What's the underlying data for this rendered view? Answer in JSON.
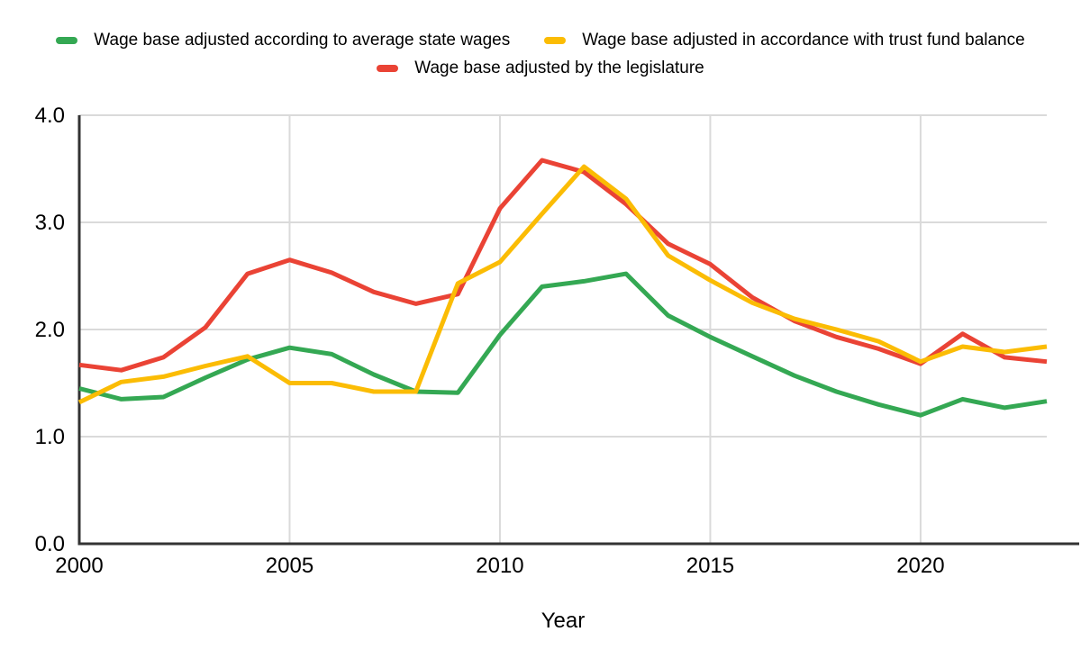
{
  "legend": {
    "items": [
      {
        "label": "Wage base adjusted according to average state wages",
        "color": "#34a853"
      },
      {
        "label": "Wage base adjusted in accordance with trust fund balance",
        "color": "#fbbc04"
      },
      {
        "label": "Wage base adjusted by the legislature",
        "color": "#ea4335"
      }
    ]
  },
  "chart_data": {
    "type": "line",
    "title": "",
    "xlabel": "Year",
    "ylabel": "",
    "x": [
      2000,
      2001,
      2002,
      2003,
      2004,
      2005,
      2006,
      2007,
      2008,
      2009,
      2010,
      2011,
      2012,
      2013,
      2014,
      2015,
      2016,
      2017,
      2018,
      2019,
      2020,
      2021,
      2022,
      2023
    ],
    "series": [
      {
        "name": "Wage base adjusted according to average state wages",
        "color": "#34a853",
        "values": [
          1.45,
          1.35,
          1.37,
          1.55,
          1.72,
          1.83,
          1.77,
          1.58,
          1.42,
          1.41,
          1.95,
          2.4,
          2.45,
          2.52,
          2.13,
          1.93,
          1.75,
          1.57,
          1.42,
          1.3,
          1.2,
          1.35,
          1.27,
          1.33
        ]
      },
      {
        "name": "Wage base adjusted in accordance with trust fund balance",
        "color": "#fbbc04",
        "values": [
          1.32,
          1.51,
          1.56,
          1.66,
          1.75,
          1.5,
          1.5,
          1.42,
          1.42,
          2.43,
          2.63,
          3.08,
          3.52,
          3.22,
          2.69,
          2.46,
          2.25,
          2.1,
          2.0,
          1.89,
          1.7,
          1.84,
          1.79,
          1.84
        ]
      },
      {
        "name": "Wage base adjusted by the legislature",
        "color": "#ea4335",
        "values": [
          1.67,
          1.62,
          1.74,
          2.02,
          2.52,
          2.65,
          2.53,
          2.35,
          2.24,
          2.33,
          3.13,
          3.58,
          3.47,
          3.17,
          2.8,
          2.61,
          2.3,
          2.08,
          1.93,
          1.82,
          1.68,
          1.96,
          1.74,
          1.7
        ]
      }
    ],
    "ylim": [
      0,
      4
    ],
    "y_ticks": [
      "0.0",
      "1.0",
      "2.0",
      "3.0",
      "4.0"
    ],
    "x_ticks": [
      2000,
      2005,
      2010,
      2015,
      2020
    ],
    "grid": true,
    "legend_position": "top",
    "gridline_color": "#dadada",
    "axis_color": "#333333",
    "text_color": "#000000"
  }
}
